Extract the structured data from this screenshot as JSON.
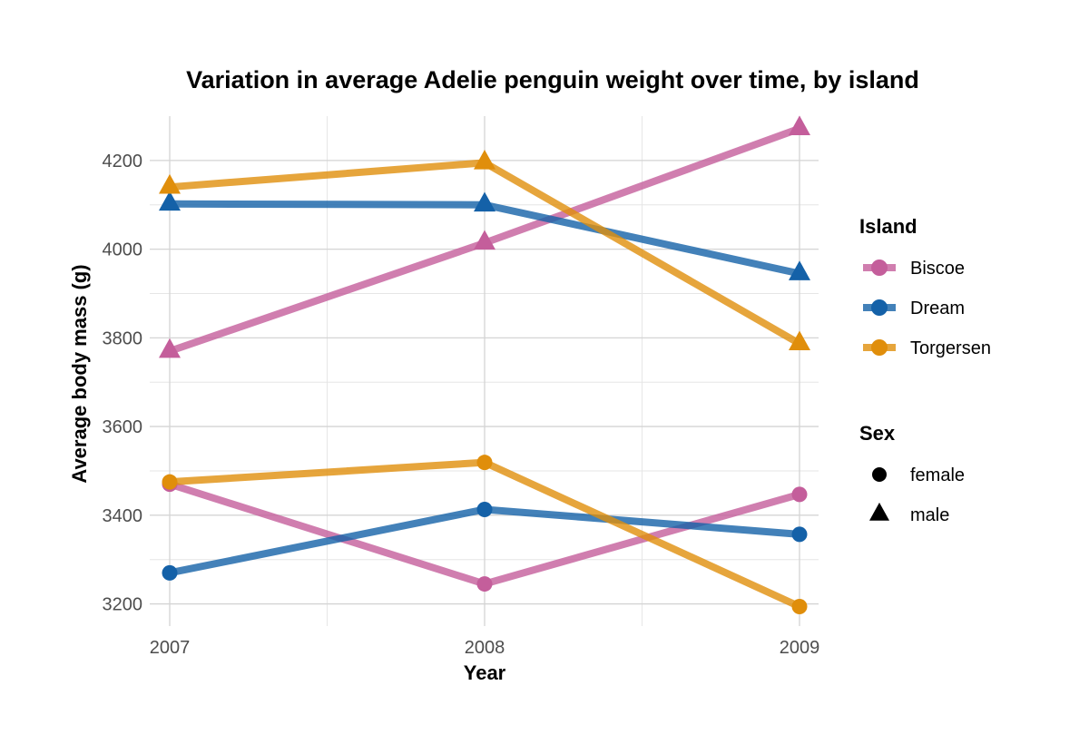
{
  "chart_data": {
    "type": "line",
    "title": "Variation in average Adelie penguin weight over time, by island",
    "xlabel": "Year",
    "ylabel": "Average body mass (g)",
    "x": [
      2007,
      2008,
      2009
    ],
    "xlim": [
      2007,
      2009
    ],
    "ylim": [
      3150,
      4300
    ],
    "y_ticks": [
      3200,
      3400,
      3600,
      3800,
      4000,
      4200
    ],
    "grid": true,
    "legend_position": "right",
    "legends": [
      {
        "title": "Island",
        "entries": [
          {
            "label": "Biscoe",
            "color": "#C45E9B"
          },
          {
            "label": "Dream",
            "color": "#1461A8"
          },
          {
            "label": "Torgersen",
            "color": "#E08E0B"
          }
        ]
      },
      {
        "title": "Sex",
        "entries": [
          {
            "label": "female",
            "shape": "circle"
          },
          {
            "label": "male",
            "shape": "triangle"
          }
        ]
      }
    ],
    "series": [
      {
        "island": "Biscoe",
        "sex": "male",
        "color": "#C45E9B",
        "shape": "triangle",
        "values": [
          3770,
          4014,
          4272
        ]
      },
      {
        "island": "Dream",
        "sex": "male",
        "color": "#1461A8",
        "shape": "triangle",
        "values": [
          4102,
          4100,
          3945
        ]
      },
      {
        "island": "Torgersen",
        "sex": "male",
        "color": "#E08E0B",
        "shape": "triangle",
        "values": [
          4140,
          4195,
          3787
        ]
      },
      {
        "island": "Biscoe",
        "sex": "female",
        "color": "#C45E9B",
        "shape": "circle",
        "values": [
          3470,
          3245,
          3447
        ]
      },
      {
        "island": "Dream",
        "sex": "female",
        "color": "#1461A8",
        "shape": "circle",
        "values": [
          3270,
          3413,
          3357
        ]
      },
      {
        "island": "Torgersen",
        "sex": "female",
        "color": "#E08E0B",
        "shape": "circle",
        "values": [
          3475,
          3519,
          3194
        ]
      }
    ]
  }
}
